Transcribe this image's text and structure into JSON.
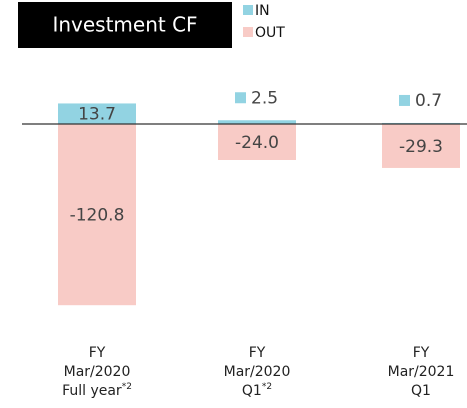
{
  "chart_data": {
    "type": "bar",
    "title": "Investment CF",
    "categories": [
      [
        "FY",
        "Mar/2020",
        "Full year"
      ],
      [
        "FY",
        "Mar/2020",
        "Q1"
      ],
      [
        "FY",
        "Mar/2021",
        "Q1"
      ]
    ],
    "category_notes": [
      "*2",
      "*2",
      null
    ],
    "series": [
      {
        "name": "IN",
        "color": "#92d3e2",
        "values": [
          13.7,
          2.5,
          0.7
        ],
        "value_labels": [
          "13.7",
          "2.5",
          "0.7"
        ]
      },
      {
        "name": "OUT",
        "color": "#f8cbc6",
        "values": [
          -120.8,
          -24.0,
          -29.3
        ],
        "value_labels": [
          "-120.8",
          "-24.0",
          "-29.3"
        ]
      }
    ]
  }
}
